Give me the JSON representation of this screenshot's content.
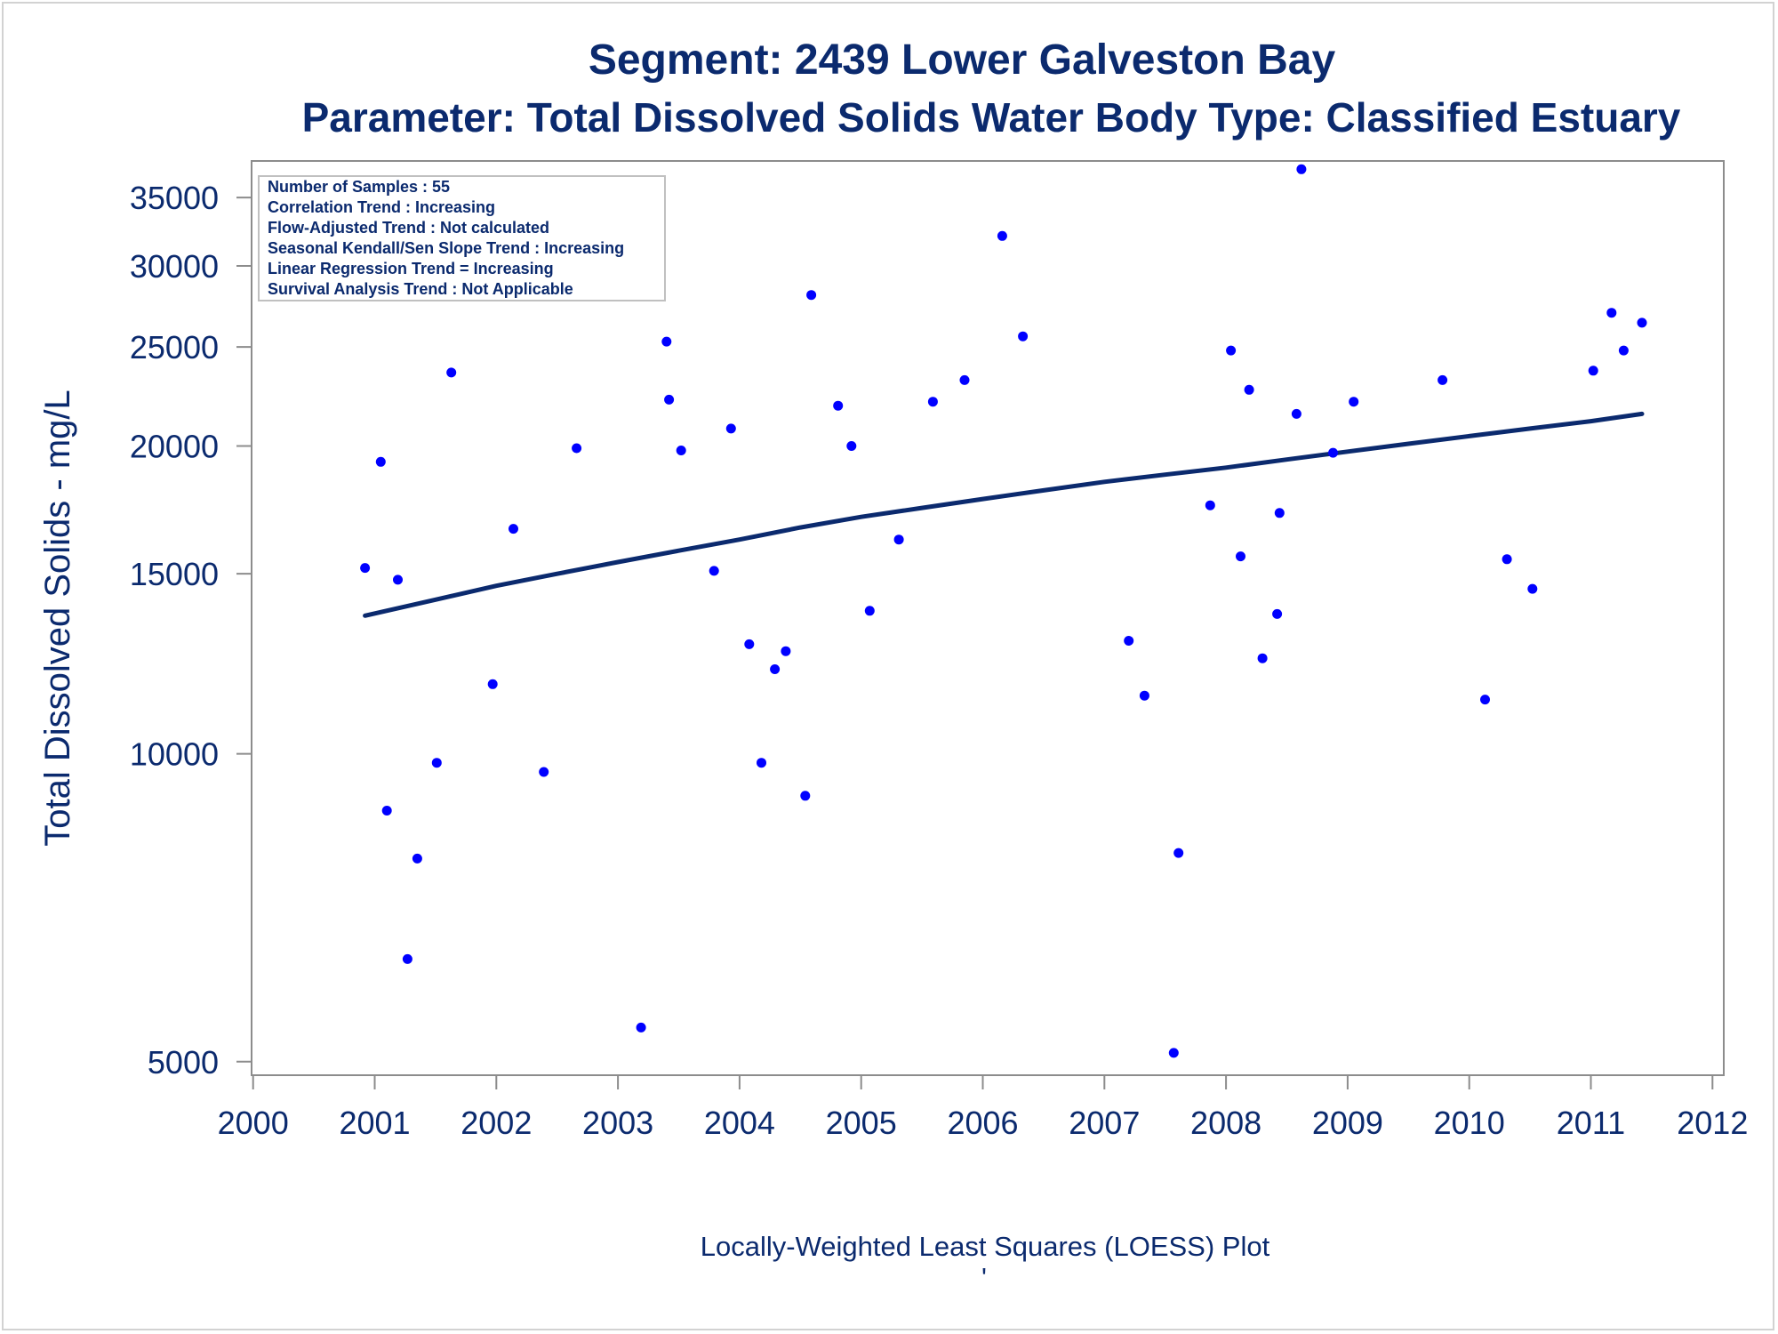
{
  "chart_data": {
    "type": "scatter",
    "title": "Segment: 2439  Lower Galveston Bay",
    "subtitle": "Parameter: Total Dissolved Solids   Water Body Type: Classified Estuary",
    "ylabel": "Total Dissolved Solids - mg/L",
    "xlabel": "",
    "footnote": "Locally-Weighted Least Squares (LOESS) Plot",
    "footnote_mark": "'",
    "x_ticks": [
      "2000",
      "2001",
      "2002",
      "2003",
      "2004",
      "2005",
      "2006",
      "2007",
      "2008",
      "2009",
      "2010",
      "2011",
      "2012"
    ],
    "y_ticks": [
      "5000",
      "10000",
      "15000",
      "20000",
      "25000",
      "30000",
      "35000"
    ],
    "y_scale": "log",
    "xlim": [
      2000,
      2012
    ],
    "ylim": [
      4850,
      38000
    ],
    "grid": false,
    "legend_position": "top-left",
    "colors": {
      "points": "#0000ff",
      "trend": "#0b2a6e",
      "text": "#0b2a6e",
      "axis": "#8c8c8c"
    },
    "stats_box": [
      "Number of Samples : 55",
      "Correlation Trend : Increasing",
      "Flow-Adjusted Trend : Not calculated",
      "Seasonal Kendall/Sen Slope Trend : Increasing",
      "Linear Regression Trend = Increasing",
      "Survival Analysis Trend : Not Applicable"
    ],
    "series": [
      {
        "kind": "points",
        "x": [
          2000.92,
          2001.05,
          2001.1,
          2001.19,
          2001.27,
          2001.35,
          2001.51,
          2001.63,
          2001.97,
          2002.14,
          2002.39,
          2002.66,
          2003.19,
          2003.4,
          2003.42,
          2003.52,
          2003.79,
          2003.93,
          2004.08,
          2004.18,
          2004.29,
          2004.38,
          2004.54,
          2004.59,
          2004.81,
          2004.92,
          2005.07,
          2005.31,
          2005.59,
          2005.85,
          2006.16,
          2006.33,
          2007.2,
          2007.33,
          2007.57,
          2007.61,
          2007.87,
          2008.04,
          2008.12,
          2008.19,
          2008.3,
          2008.42,
          2008.44,
          2008.58,
          2008.62,
          2008.88,
          2009.05,
          2009.78,
          2010.13,
          2010.31,
          2010.52,
          2011.02,
          2011.17,
          2011.27,
          2011.42
        ],
        "y": [
          15200,
          19300,
          8800,
          14800,
          6300,
          7900,
          9800,
          23600,
          11700,
          16600,
          9600,
          19900,
          5400,
          25300,
          22200,
          19800,
          15100,
          20800,
          12800,
          9800,
          12100,
          12600,
          9100,
          28100,
          21900,
          20000,
          13800,
          16200,
          22100,
          23200,
          32100,
          25600,
          12900,
          11400,
          5100,
          8000,
          17500,
          24800,
          15600,
          22700,
          12400,
          13700,
          17200,
          21500,
          37300,
          19700,
          22100,
          23200,
          11300,
          15500,
          14500,
          23700,
          27000,
          24800,
          26400
        ]
      },
      {
        "kind": "line",
        "x": [
          2000.92,
          2001.5,
          2002.0,
          2002.5,
          2003.0,
          2003.5,
          2004.0,
          2004.5,
          2005.0,
          2005.5,
          2006.0,
          2006.5,
          2007.0,
          2007.5,
          2008.0,
          2008.5,
          2009.0,
          2009.5,
          2010.0,
          2010.5,
          2011.0,
          2011.42
        ],
        "y": [
          13650,
          14150,
          14600,
          15000,
          15400,
          15800,
          16200,
          16650,
          17050,
          17400,
          17750,
          18100,
          18450,
          18750,
          19050,
          19400,
          19750,
          20100,
          20450,
          20800,
          21150,
          21500
        ]
      }
    ]
  }
}
